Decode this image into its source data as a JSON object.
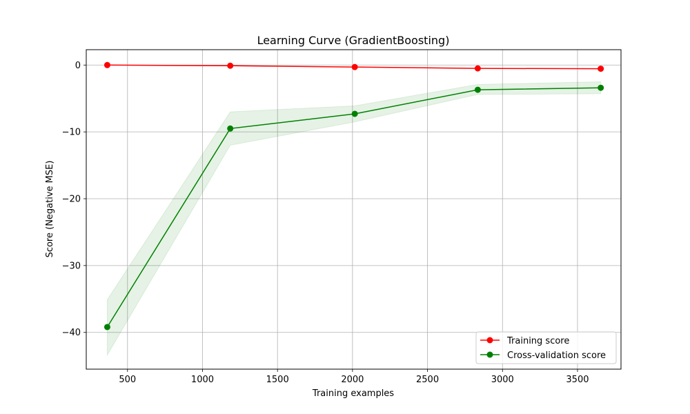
{
  "chart_data": {
    "type": "line",
    "title": "Learning Curve (GradientBoosting)",
    "xlabel": "Training examples",
    "ylabel": "Score (Negative MSE)",
    "xlim": [
      225,
      3790
    ],
    "ylim": [
      -45.5,
      2.3
    ],
    "xticks": [
      500,
      1000,
      1500,
      2000,
      2500,
      3000,
      3500
    ],
    "xtick_labels": [
      "500",
      "1000",
      "1500",
      "2000",
      "2500",
      "3000",
      "3500"
    ],
    "yticks": [
      0,
      -10,
      -20,
      -30,
      -40
    ],
    "ytick_labels": [
      "0",
      "−10",
      "−20",
      "−30",
      "−40"
    ],
    "grid": true,
    "legend_position": "lower-right",
    "x": [
      365,
      1185,
      2015,
      2835,
      3655
    ],
    "series": [
      {
        "name": "Training score",
        "color": "#ff0000",
        "marker": "circle",
        "values": [
          0.0,
          -0.1,
          -0.3,
          -0.5,
          -0.55
        ],
        "band_lower": [
          0.0,
          -0.1,
          -0.3,
          -0.5,
          -0.55
        ],
        "band_upper": [
          0.0,
          -0.1,
          -0.3,
          -0.5,
          -0.55
        ],
        "band_color": "#ff0000"
      },
      {
        "name": "Cross-validation score",
        "color": "#008000",
        "marker": "circle",
        "values": [
          -39.2,
          -9.5,
          -7.3,
          -3.7,
          -3.4
        ],
        "band_lower": [
          -43.4,
          -12.0,
          -8.5,
          -4.4,
          -4.3
        ],
        "band_upper": [
          -35.1,
          -7.0,
          -6.1,
          -2.9,
          -2.5
        ],
        "band_color": "#008000"
      }
    ]
  }
}
